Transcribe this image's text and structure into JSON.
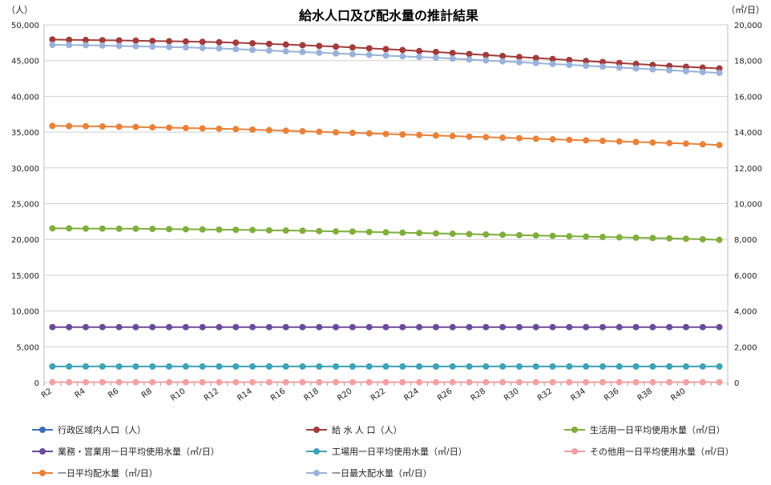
{
  "chart_data": {
    "type": "line",
    "title": "給水人口及び配水量の推計結果",
    "left_unit": "（人）",
    "right_unit": "（㎥/日）",
    "x_labels": [
      "R2",
      "R3",
      "R4",
      "R5",
      "R6",
      "R7",
      "R8",
      "R9",
      "R10",
      "R11",
      "R12",
      "R13",
      "R14",
      "R15",
      "R16",
      "R17",
      "R18",
      "R19",
      "R20",
      "R21",
      "R22",
      "R23",
      "R24",
      "R25",
      "R26",
      "R27",
      "R28",
      "R29",
      "R30",
      "R31",
      "R32",
      "R33",
      "R34",
      "R35",
      "R36",
      "R37",
      "R38",
      "R39",
      "R40",
      "R41",
      "R42"
    ],
    "x_tick_labels": [
      "R2",
      "R4",
      "R6",
      "R8",
      "R10",
      "R12",
      "R14",
      "R16",
      "R18",
      "R20",
      "R22",
      "R24",
      "R26",
      "R28",
      "R30",
      "R32",
      "R34",
      "R36",
      "R38",
      "R40"
    ],
    "left_axis": {
      "min": 0,
      "max": 50000,
      "ticks": [
        0,
        5000,
        10000,
        15000,
        20000,
        25000,
        30000,
        35000,
        40000,
        45000,
        50000
      ],
      "tick_labels": [
        "0",
        "5,000",
        "10,000",
        "15,000",
        "20,000",
        "25,000",
        "30,000",
        "35,000",
        "40,000",
        "45,000",
        "50,000"
      ]
    },
    "right_axis": {
      "min": 0,
      "max": 20000,
      "ticks": [
        0,
        2000,
        4000,
        6000,
        8000,
        10000,
        12000,
        14000,
        16000,
        18000,
        20000
      ],
      "tick_labels": [
        "0",
        "2,000",
        "4,000",
        "6,000",
        "8,000",
        "10,000",
        "12,000",
        "14,000",
        "16,000",
        "18,000",
        "20,000"
      ]
    },
    "grid": true,
    "legend_position": "bottom",
    "series": [
      {
        "name": "行政区域内人口（人）",
        "axis": "left",
        "color": "#3F6EB5",
        "show_in_plot": false,
        "values": [
          48000,
          47950,
          47900,
          47850,
          47800,
          47720,
          47650,
          47570,
          47500,
          47420,
          47300,
          47180,
          47050,
          46920,
          46800,
          46680,
          46550,
          46420,
          46280,
          46150,
          46000,
          45870,
          45720,
          45580,
          45440,
          45300,
          45150,
          45000,
          44870,
          44720,
          44570,
          44420,
          44280,
          44140,
          44000,
          43870,
          43740,
          43620,
          43500,
          43380,
          43300
        ]
      },
      {
        "name": "給 水 人 口（人）",
        "axis": "left",
        "color": "#A23B3B",
        "show_in_plot": true,
        "values": [
          47950,
          47900,
          47870,
          47850,
          47820,
          47780,
          47740,
          47700,
          47660,
          47620,
          47570,
          47500,
          47420,
          47330,
          47240,
          47150,
          47050,
          46950,
          46840,
          46720,
          46600,
          46470,
          46330,
          46200,
          46060,
          45920,
          45780,
          45640,
          45500,
          45360,
          45220,
          45080,
          44940,
          44800,
          44660,
          44520,
          44390,
          44260,
          44130,
          44010,
          43900
        ]
      },
      {
        "name": "生活用一日平均使用水量（㎥/日）",
        "axis": "right",
        "color": "#7FAE3C",
        "show_in_plot": true,
        "values": [
          8620,
          8620,
          8610,
          8610,
          8600,
          8600,
          8590,
          8580,
          8570,
          8560,
          8550,
          8540,
          8530,
          8510,
          8500,
          8490,
          8470,
          8450,
          8440,
          8420,
          8400,
          8380,
          8360,
          8340,
          8320,
          8300,
          8280,
          8260,
          8240,
          8220,
          8200,
          8180,
          8160,
          8140,
          8120,
          8100,
          8080,
          8060,
          8040,
          8010,
          7980
        ]
      },
      {
        "name": "業務・営業用一日平均使用水量（㎥/日）",
        "axis": "right",
        "color": "#6A4A9C",
        "show_in_plot": true,
        "values": [
          3100,
          3100,
          3100,
          3100,
          3100,
          3100,
          3100,
          3100,
          3100,
          3100,
          3100,
          3100,
          3100,
          3100,
          3100,
          3100,
          3100,
          3100,
          3100,
          3100,
          3100,
          3100,
          3100,
          3100,
          3100,
          3100,
          3100,
          3100,
          3100,
          3100,
          3100,
          3100,
          3100,
          3100,
          3100,
          3100,
          3100,
          3100,
          3100,
          3100,
          3100
        ]
      },
      {
        "name": "工場用一日平均使用水量（㎥/日）",
        "axis": "right",
        "color": "#3DA3B5",
        "show_in_plot": true,
        "values": [
          900,
          900,
          900,
          900,
          900,
          900,
          900,
          900,
          900,
          900,
          900,
          900,
          900,
          900,
          900,
          900,
          900,
          900,
          900,
          900,
          900,
          900,
          900,
          900,
          900,
          900,
          900,
          900,
          900,
          900,
          900,
          900,
          900,
          900,
          900,
          900,
          900,
          900,
          900,
          900,
          900
        ]
      },
      {
        "name": "その他用一日平均使用水量（㎥/日）",
        "axis": "right",
        "color": "#F2A0A0",
        "show_in_plot": true,
        "values": [
          20,
          20,
          20,
          20,
          20,
          20,
          20,
          20,
          20,
          20,
          20,
          20,
          20,
          20,
          20,
          20,
          20,
          20,
          20,
          20,
          20,
          20,
          20,
          20,
          20,
          20,
          20,
          20,
          20,
          20,
          20,
          20,
          20,
          20,
          20,
          20,
          20,
          20,
          20,
          20,
          20
        ]
      },
      {
        "name": "一日平均配水量（㎥/日）",
        "axis": "right",
        "color": "#E8823A",
        "show_in_plot": true,
        "values": [
          14350,
          14340,
          14330,
          14320,
          14300,
          14290,
          14270,
          14250,
          14230,
          14210,
          14190,
          14170,
          14140,
          14110,
          14080,
          14050,
          14020,
          13990,
          13960,
          13930,
          13900,
          13870,
          13840,
          13810,
          13780,
          13750,
          13720,
          13690,
          13660,
          13630,
          13600,
          13570,
          13540,
          13510,
          13480,
          13450,
          13420,
          13390,
          13360,
          13320,
          13280
        ]
      },
      {
        "name": "一日最大配水量（㎥/日）",
        "axis": "right",
        "color": "#9AB2D9",
        "show_in_plot": true,
        "values": [
          18880,
          18870,
          18860,
          18840,
          18820,
          18800,
          18780,
          18760,
          18740,
          18710,
          18680,
          18640,
          18600,
          18560,
          18520,
          18480,
          18440,
          18400,
          18360,
          18320,
          18280,
          18240,
          18200,
          18160,
          18110,
          18060,
          18010,
          17960,
          17910,
          17860,
          17810,
          17760,
          17710,
          17660,
          17610,
          17560,
          17510,
          17460,
          17410,
          17360,
          17310
        ]
      }
    ]
  }
}
